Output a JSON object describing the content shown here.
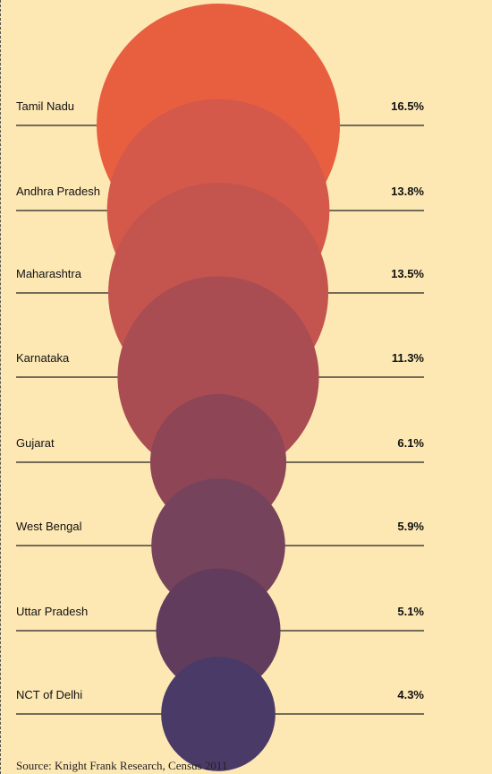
{
  "chart_data": {
    "type": "bubble",
    "categories": [
      "Tamil Nadu",
      "Andhra Pradesh",
      "Maharashtra",
      "Karnataka",
      "Gujarat",
      "West Bengal",
      "Uttar Pradesh",
      "NCT of Delhi"
    ],
    "values": [
      16.5,
      13.8,
      13.5,
      11.3,
      6.1,
      5.9,
      5.1,
      4.3
    ],
    "value_labels": [
      "16.5%",
      "13.8%",
      "13.5%",
      "11.3%",
      "6.1%",
      "5.9%",
      "5.1%",
      "4.3%"
    ],
    "colors": [
      "#e85f40",
      "#d4594a",
      "#c4544e",
      "#a94d53",
      "#8e4556",
      "#76435c",
      "#623c5c",
      "#4a3a68"
    ]
  },
  "source": "Source: Knight Frank Research, Census 2011"
}
